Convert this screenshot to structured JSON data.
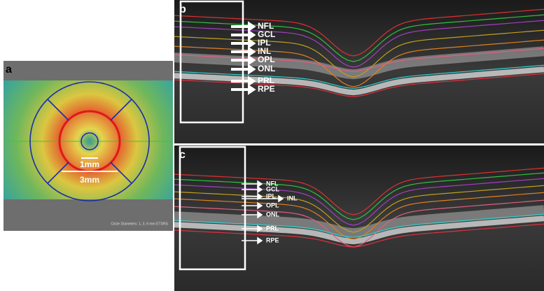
{
  "panels": [
    {
      "label": "a",
      "ring_labels": [
        "1mm",
        "3mm"
      ],
      "footer": "Circle Diameters: 1, 3, 6 mm ETDRS"
    },
    {
      "label": "b",
      "layers": [
        "NFL",
        "GCL",
        "IPL",
        "INL",
        "OPL",
        "ONL",
        "PRL",
        "RPE"
      ]
    },
    {
      "label": "c",
      "layers": [
        "NFL",
        "GCL",
        "IPL",
        "INL",
        "OPL",
        "ONL",
        "PRL",
        "RPE"
      ]
    }
  ]
}
